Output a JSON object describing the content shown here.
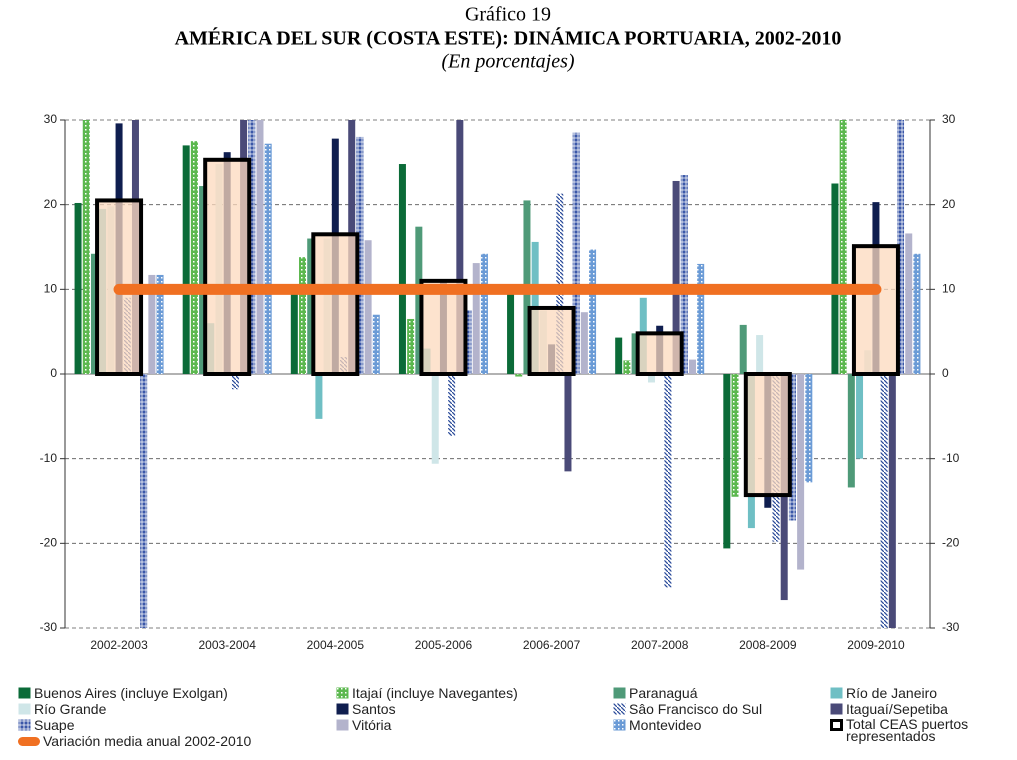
{
  "chart_data": {
    "type": "bar",
    "kicker": "Gráfico 19",
    "title": "AMÉRICA DEL SUR (COSTA ESTE): DINÁMICA PORTUARIA, 2002-2010",
    "subtitle": "(En porcentajes)",
    "categories": [
      "2002-2003",
      "2003-2004",
      "2004-2005",
      "2005-2006",
      "2006-2007",
      "2007-2008",
      "2008-2009",
      "2009-2010"
    ],
    "ylim": [
      -30,
      30
    ],
    "yticks": [
      -30,
      -20,
      -10,
      0,
      10,
      20,
      30
    ],
    "y2lim": [
      -30,
      30
    ],
    "y2ticks": [
      -30,
      -20,
      -10,
      0,
      10,
      20,
      30
    ],
    "grid": true,
    "series": [
      {
        "name": "Buenos Aires (incluye Exolgan)",
        "color": "#0b6b38",
        "pattern": "solid",
        "values": [
          20.2,
          27,
          10,
          24.8,
          10,
          4.3,
          -20.6,
          22.5
        ]
      },
      {
        "name": "Itajaí (incluye Navegantes)",
        "color": "#5cb84f",
        "pattern": "dots",
        "values": [
          30,
          27.5,
          13.8,
          6.5,
          -0.3,
          1.6,
          -14.5,
          30
        ]
      },
      {
        "name": "Paranaguá",
        "color": "#4f9a78",
        "pattern": "solid",
        "values": [
          14.2,
          22.2,
          16,
          17.4,
          20.5,
          4.8,
          5.8,
          -13.4
        ]
      },
      {
        "name": "Río de Janeiro",
        "color": "#6fbfc4",
        "pattern": "solid",
        "values": [
          19.5,
          6,
          -5.3,
          3,
          15.6,
          9,
          -18.2,
          -10
        ]
      },
      {
        "name": "Río Grande",
        "color": "#cfe6e8",
        "pattern": "solid",
        "values": [
          19.8,
          24.8,
          16,
          -10.6,
          7.5,
          -1,
          4.6,
          2.8
        ]
      },
      {
        "name": "Santos",
        "color": "#0f1e4f",
        "pattern": "solid",
        "values": [
          29.6,
          26.2,
          27.8,
          11,
          3.5,
          5.7,
          -15.8,
          20.3
        ]
      },
      {
        "name": "Sâo Francisco do Sul",
        "color": "#2a4b9a",
        "pattern": "diagonal",
        "values": [
          9,
          -1.8,
          2,
          -7.3,
          21.3,
          -25.2,
          -19.8,
          -30
        ]
      },
      {
        "name": "Itaguaí/Sepetiba",
        "color": "#4a4a78",
        "pattern": "solid",
        "values": [
          30,
          30,
          30,
          30,
          -11.5,
          22.8,
          -26.7,
          -30
        ]
      },
      {
        "name": "Suape",
        "color": "#3a57a8",
        "pattern": "grid",
        "values": [
          -30,
          30,
          28,
          7.5,
          28.5,
          23.5,
          -17.3,
          30
        ]
      },
      {
        "name": "Vitória",
        "color": "#b3b3cc",
        "pattern": "solid",
        "values": [
          11.7,
          30,
          15.8,
          13.1,
          7.3,
          1.7,
          -23.1,
          16.6
        ]
      },
      {
        "name": "Montevideo",
        "color": "#6b9bd6",
        "pattern": "dots",
        "values": [
          11.7,
          27.2,
          7,
          14.2,
          14.7,
          13,
          -12.8,
          14.2
        ]
      }
    ],
    "total": {
      "name": "Total CEAS puertos representados",
      "color": "#fcd9bd",
      "values": [
        20.5,
        25.3,
        16.5,
        11,
        7.8,
        4.8,
        -14.3,
        15.1
      ]
    },
    "average": {
      "name": "Variación media anual 2002-2010",
      "color": "#f07022",
      "values": [
        10,
        10,
        10,
        10,
        10,
        10,
        10,
        10
      ]
    }
  }
}
